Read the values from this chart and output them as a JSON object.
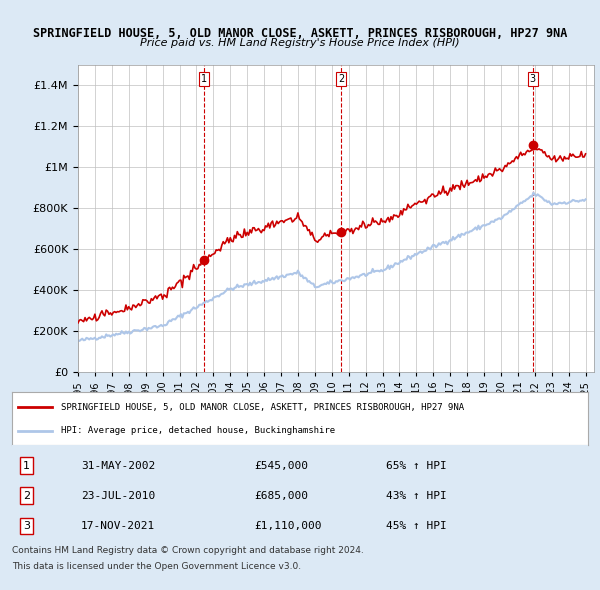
{
  "title": "SPRINGFIELD HOUSE, 5, OLD MANOR CLOSE, ASKETT, PRINCES RISBOROUGH, HP27 9NA",
  "subtitle": "Price paid vs. HM Land Registry's House Price Index (HPI)",
  "legend_line1": "SPRINGFIELD HOUSE, 5, OLD MANOR CLOSE, ASKETT, PRINCES RISBOROUGH, HP27 9NA",
  "legend_line2": "HPI: Average price, detached house, Buckinghamshire",
  "footer1": "Contains HM Land Registry data © Crown copyright and database right 2024.",
  "footer2": "This data is licensed under the Open Government Licence v3.0.",
  "transactions": [
    {
      "num": "1",
      "date": "31-MAY-2002",
      "price": "£545,000",
      "hpi": "65% ↑ HPI",
      "x": 2002.42
    },
    {
      "num": "2",
      "date": "23-JUL-2010",
      "price": "£685,000",
      "hpi": "43% ↑ HPI",
      "x": 2010.56
    },
    {
      "num": "3",
      "date": "17-NOV-2021",
      "price": "£1,110,000",
      "hpi": "45% ↑ HPI",
      "x": 2021.88
    }
  ],
  "hpi_color": "#aec6e8",
  "price_color": "#cc0000",
  "dashed_vline_color": "#cc0000",
  "background_color": "#dce9f5",
  "plot_background": "#ffffff",
  "grid_color": "#c0c0c0",
  "ylim": [
    0,
    1500000
  ],
  "xlim_start": 1995,
  "xlim_end": 2025.5,
  "yticks": [
    0,
    200000,
    400000,
    600000,
    800000,
    1000000,
    1200000,
    1400000
  ]
}
